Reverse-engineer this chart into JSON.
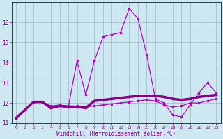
{
  "xlabel": "Windchill (Refroidissement éolien,°C)",
  "background_color": "#cde8f0",
  "grid_color": "#a0b8c8",
  "line_color": "#bb00bb",
  "line_color2": "#880088",
  "x_values": [
    0,
    1,
    2,
    3,
    4,
    5,
    6,
    7,
    8,
    9,
    10,
    11,
    12,
    13,
    14,
    15,
    16,
    17,
    18,
    19,
    20,
    21,
    22,
    23
  ],
  "line1_y": [
    11.25,
    11.65,
    12.05,
    12.05,
    11.75,
    11.85,
    11.8,
    11.8,
    11.75,
    12.1,
    12.15,
    12.2,
    12.25,
    12.3,
    12.35,
    12.35,
    12.35,
    12.3,
    12.2,
    12.15,
    12.2,
    12.3,
    12.35,
    12.4
  ],
  "line2_y": [
    11.25,
    11.65,
    12.05,
    12.05,
    11.75,
    11.85,
    11.8,
    14.1,
    12.4,
    14.1,
    15.3,
    15.4,
    15.5,
    16.7,
    16.2,
    14.4,
    12.2,
    12.0,
    11.4,
    11.3,
    11.9,
    12.5,
    13.0,
    12.5
  ],
  "line3_y": [
    11.25,
    11.65,
    12.05,
    12.05,
    11.85,
    11.9,
    11.85,
    11.85,
    11.8,
    11.85,
    11.9,
    11.95,
    12.0,
    12.05,
    12.1,
    12.15,
    12.1,
    11.9,
    11.8,
    11.85,
    12.0,
    12.0,
    12.1,
    12.2
  ],
  "ylim": [
    11.0,
    17.0
  ],
  "yticks": [
    11,
    12,
    13,
    14,
    15,
    16
  ],
  "xlim_min": -0.5,
  "xlim_max": 23.5,
  "xticks": [
    0,
    1,
    2,
    3,
    4,
    5,
    6,
    7,
    8,
    9,
    10,
    11,
    12,
    13,
    14,
    15,
    16,
    17,
    18,
    19,
    20,
    21,
    22,
    23
  ]
}
